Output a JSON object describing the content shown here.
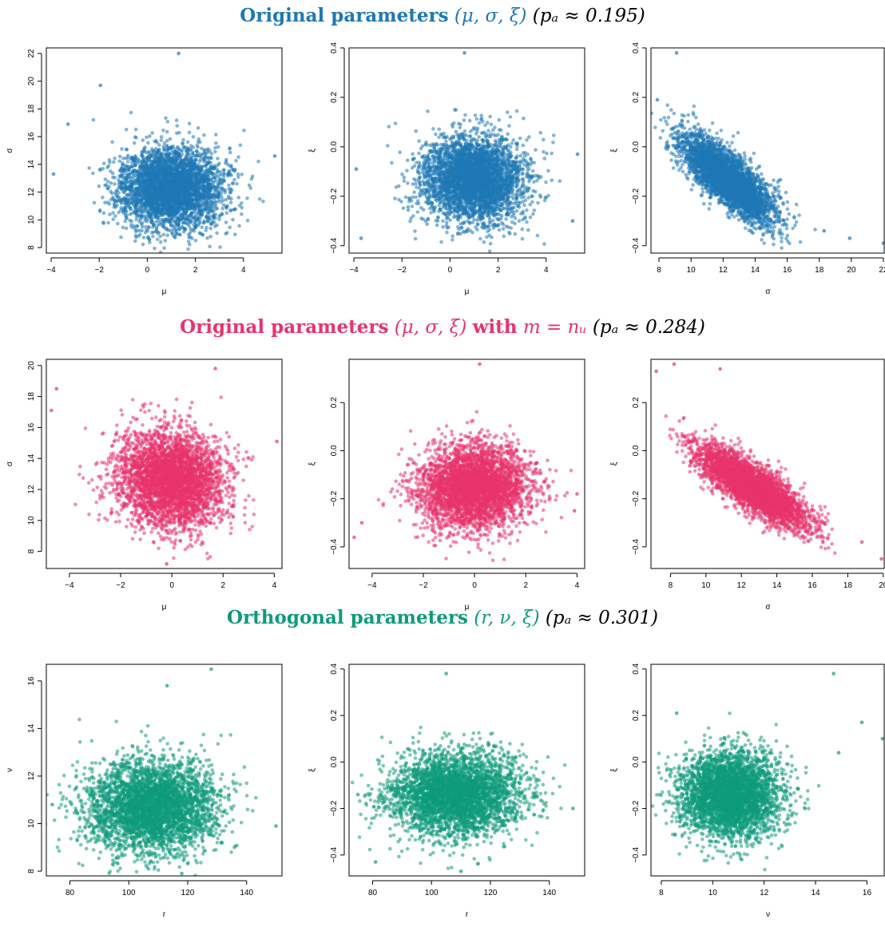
{
  "rows": [
    {
      "title_lead": "Original parameters",
      "title_params": "(μ, σ, ξ)",
      "title_mid": "",
      "title_cond": "",
      "title_pa": "(pₐ ≈ 0.195)",
      "color": "#1F78B4"
    },
    {
      "title_lead": "Original parameters",
      "title_params": "(μ, σ, ξ)",
      "title_mid": "with",
      "title_cond": "m = nᵤ",
      "title_pa": "(pₐ ≈ 0.284)",
      "color": "#E8336D"
    },
    {
      "title_lead": "Orthogonal parameters",
      "title_params": "(r, ν, ξ)",
      "title_mid": "",
      "title_cond": "",
      "title_pa": "(pₐ ≈ 0.301)",
      "color": "#0F9A7C"
    }
  ],
  "chart_data": [
    {
      "type": "scatter",
      "row": 0,
      "xlabel": "μ",
      "ylabel": "σ",
      "color": "#1F78B4",
      "xticks": [
        "−4",
        "−2",
        "0",
        "2",
        "4"
      ],
      "yticks": [
        "8",
        "10",
        "12",
        "14",
        "16",
        "18",
        "20",
        "22"
      ],
      "xlim": [
        -4.2,
        5.6
      ],
      "ylim": [
        7.6,
        22.4
      ],
      "center": [
        1.0,
        12.3
      ],
      "spread": [
        1.05,
        1.45
      ],
      "rho": 0.0,
      "n": 3600,
      "seed": 11,
      "outliers": [
        [
          1.3,
          22.0
        ],
        [
          -1.95,
          19.7
        ],
        [
          -3.9,
          13.3
        ],
        [
          5.3,
          14.6
        ],
        [
          -3.3,
          16.9
        ]
      ]
    },
    {
      "type": "scatter",
      "row": 0,
      "xlabel": "μ",
      "ylabel": "ξ",
      "color": "#1F78B4",
      "xticks": [
        "−4",
        "−2",
        "0",
        "2",
        "4"
      ],
      "yticks": [
        "−0.4",
        "−0.2",
        "0.0",
        "0.2",
        "0.4"
      ],
      "xlim": [
        -4.2,
        5.6
      ],
      "ylim": [
        -0.43,
        0.4
      ],
      "center": [
        1.0,
        -0.13
      ],
      "spread": [
        1.05,
        0.085
      ],
      "rho": 0.0,
      "n": 3600,
      "seed": 12,
      "outliers": [
        [
          0.6,
          0.38
        ],
        [
          -3.9,
          -0.09
        ],
        [
          5.3,
          -0.03
        ],
        [
          -3.7,
          -0.37
        ],
        [
          5.1,
          -0.3
        ]
      ]
    },
    {
      "type": "scatter",
      "row": 0,
      "xlabel": "σ",
      "ylabel": "ξ",
      "color": "#1F78B4",
      "xticks": [
        "8",
        "10",
        "12",
        "14",
        "16",
        "18",
        "20",
        "22"
      ],
      "yticks": [
        "−0.4",
        "−0.2",
        "0.0",
        "0.2",
        "0.4"
      ],
      "xlim": [
        7.5,
        22.1
      ],
      "ylim": [
        -0.43,
        0.4
      ],
      "center": [
        12.3,
        -0.13
      ],
      "spread": [
        1.45,
        0.085
      ],
      "rho": -0.78,
      "n": 3600,
      "seed": 13,
      "outliers": [
        [
          9.1,
          0.38
        ],
        [
          22.0,
          -0.39
        ],
        [
          19.9,
          -0.37
        ],
        [
          18.3,
          -0.34
        ],
        [
          7.9,
          0.19
        ]
      ]
    },
    {
      "type": "scatter",
      "row": 1,
      "xlabel": "μ",
      "ylabel": "σ",
      "color": "#E8336D",
      "xticks": [
        "−4",
        "−2",
        "0",
        "2",
        "4"
      ],
      "yticks": [
        "8",
        "10",
        "12",
        "14",
        "16",
        "18",
        "20"
      ],
      "xlim": [
        -4.9,
        4.3
      ],
      "ylim": [
        6.9,
        20.4
      ],
      "center": [
        0.0,
        12.6
      ],
      "spread": [
        1.05,
        1.55
      ],
      "rho": -0.08,
      "n": 3600,
      "seed": 21,
      "outliers": [
        [
          1.7,
          19.8
        ],
        [
          4.1,
          15.1
        ],
        [
          -4.7,
          17.1
        ],
        [
          -4.5,
          18.5
        ],
        [
          -0.2,
          7.2
        ]
      ]
    },
    {
      "type": "scatter",
      "row": 1,
      "xlabel": "μ",
      "ylabel": "ξ",
      "color": "#E8336D",
      "xticks": [
        "−4",
        "−2",
        "0",
        "2",
        "4"
      ],
      "yticks": [
        "−0.4",
        "−0.2",
        "0.0",
        "0.2"
      ],
      "xlim": [
        -4.9,
        4.3
      ],
      "ylim": [
        -0.49,
        0.38
      ],
      "center": [
        0.0,
        -0.15
      ],
      "spread": [
        1.05,
        0.085
      ],
      "rho": 0.05,
      "n": 3600,
      "seed": 22,
      "outliers": [
        [
          0.2,
          0.36
        ],
        [
          -4.7,
          -0.36
        ],
        [
          4.0,
          -0.18
        ],
        [
          -4.4,
          -0.3
        ],
        [
          3.9,
          -0.25
        ]
      ]
    },
    {
      "type": "scatter",
      "row": 1,
      "xlabel": "σ",
      "ylabel": "ξ",
      "color": "#E8336D",
      "xticks": [
        "8",
        "10",
        "12",
        "14",
        "16",
        "18",
        "20"
      ],
      "yticks": [
        "−0.4",
        "−0.2",
        "0.0",
        "0.2"
      ],
      "xlim": [
        6.9,
        20.1
      ],
      "ylim": [
        -0.49,
        0.38
      ],
      "center": [
        12.6,
        -0.15
      ],
      "spread": [
        1.55,
        0.085
      ],
      "rho": -0.82,
      "n": 3600,
      "seed": 23,
      "outliers": [
        [
          8.2,
          0.36
        ],
        [
          7.2,
          0.33
        ],
        [
          19.9,
          -0.45
        ],
        [
          18.8,
          -0.38
        ],
        [
          10.8,
          0.34
        ]
      ]
    },
    {
      "type": "scatter",
      "row": 2,
      "xlabel": "r",
      "ylabel": "ν",
      "color": "#0F9A7C",
      "xticks": [
        "80",
        "100",
        "120",
        "140"
      ],
      "yticks": [
        "8",
        "10",
        "12",
        "14",
        "16"
      ],
      "xlim": [
        72,
        152
      ],
      "ylim": [
        7.8,
        16.7
      ],
      "center": [
        108,
        10.7
      ],
      "spread": [
        11.0,
        0.95
      ],
      "rho": 0.03,
      "n": 3600,
      "seed": 31,
      "outliers": [
        [
          128,
          16.5
        ],
        [
          113,
          15.8
        ],
        [
          74,
          10.8
        ],
        [
          150,
          9.9
        ],
        [
          118,
          7.9
        ]
      ]
    },
    {
      "type": "scatter",
      "row": 2,
      "xlabel": "r",
      "ylabel": "ξ",
      "color": "#0F9A7C",
      "xticks": [
        "80",
        "100",
        "120",
        "140"
      ],
      "yticks": [
        "−0.4",
        "−0.2",
        "0.0",
        "0.2",
        "0.4"
      ],
      "xlim": [
        72,
        152
      ],
      "ylim": [
        -0.49,
        0.42
      ],
      "center": [
        108,
        -0.14
      ],
      "spread": [
        11.0,
        0.09
      ],
      "rho": 0.0,
      "n": 3600,
      "seed": 32,
      "outliers": [
        [
          105,
          0.38
        ],
        [
          75,
          -0.14
        ],
        [
          148,
          -0.2
        ],
        [
          81,
          -0.43
        ],
        [
          110,
          -0.47
        ]
      ]
    },
    {
      "type": "scatter",
      "row": 2,
      "xlabel": "ν",
      "ylabel": "ξ",
      "color": "#0F9A7C",
      "xticks": [
        "8",
        "10",
        "12",
        "14",
        "16"
      ],
      "yticks": [
        "−0.4",
        "−0.2",
        "0.0",
        "0.2",
        "0.4"
      ],
      "xlim": [
        7.6,
        16.7
      ],
      "ylim": [
        -0.49,
        0.42
      ],
      "center": [
        10.7,
        -0.14
      ],
      "spread": [
        0.95,
        0.09
      ],
      "rho": 0.0,
      "n": 3600,
      "seed": 33,
      "outliers": [
        [
          14.7,
          0.38
        ],
        [
          16.6,
          0.1
        ],
        [
          15.8,
          0.17
        ],
        [
          14.9,
          0.04
        ],
        [
          8.6,
          0.21
        ]
      ]
    }
  ]
}
